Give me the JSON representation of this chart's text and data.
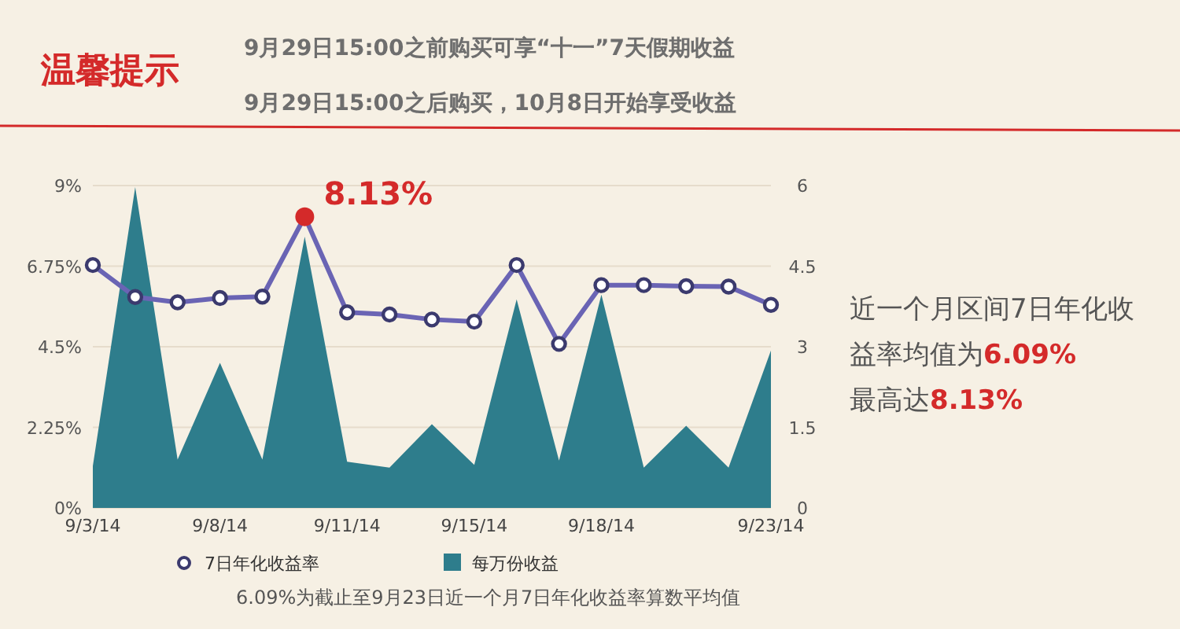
{
  "chart_data": {
    "type": "area",
    "title": "温馨提示",
    "subtitle": "9月29日15:00之前购买可享“十一”7天假期收益\n9月29日15:00之后购买，10月8日开始享受收益",
    "categories": [
      "9/3/14",
      null,
      null,
      "9/8/14",
      null,
      null,
      "9/11/14",
      null,
      null,
      "9/15/14",
      null,
      null,
      "9/18/14",
      null,
      null,
      null,
      "9/23/14"
    ],
    "series": [
      {
        "name": "每万份收益",
        "type": "area",
        "axis": "y2",
        "color": "#2e7d8c",
        "values": [
          0.78,
          5.97,
          0.9,
          2.7,
          0.9,
          5.05,
          0.86,
          0.75,
          1.56,
          0.8,
          3.88,
          0.88,
          3.97,
          0.75,
          1.53,
          0.75,
          2.93
        ]
      },
      {
        "name": "7日年化收益率",
        "type": "line",
        "color": "#6a64b4",
        "marker": "circle",
        "line_style": "solid",
        "values": [
          6.78,
          5.89,
          5.74,
          5.86,
          5.9,
          8.13,
          5.46,
          5.4,
          5.26,
          5.2,
          6.78,
          4.58,
          6.22,
          6.22,
          6.19,
          6.18,
          5.67
        ],
        "colors": [
          "#3b3a6e",
          "#3b3a6e",
          "#3b3a6e",
          "#3b3a6e",
          "#3b3a6e",
          "#d42a2a",
          "#3b3a6e",
          "#3b3a6e",
          "#3b3a6e",
          "#3b3a6e",
          "#3b3a6e",
          "#3b3a6e",
          "#3b3a6e",
          "#3b3a6e",
          "#3b3a6e",
          "#3b3a6e",
          "#3b3a6e"
        ]
      }
    ],
    "ylim": [
      0,
      9
    ],
    "yticks": [
      {
        "value": 0,
        "label": "0%"
      },
      {
        "value": 2.25,
        "label": "2.25%"
      },
      {
        "value": 4.5,
        "label": "4.5%"
      },
      {
        "value": 6.75,
        "label": "6.75%"
      },
      {
        "value": 9,
        "label": "9%"
      }
    ],
    "y2lim": [
      0,
      6
    ],
    "y2ticks": [
      0,
      1.5,
      3,
      4.5,
      6
    ],
    "grid": "y",
    "legend": "bottom",
    "annotations": [
      "8.13%",
      "近一个月区间7日年化收益率均值为6.09%\n最高达8.13%",
      "6.09%为截止至9月23日近一个月7日年化收益率算数平均值"
    ]
  }
}
